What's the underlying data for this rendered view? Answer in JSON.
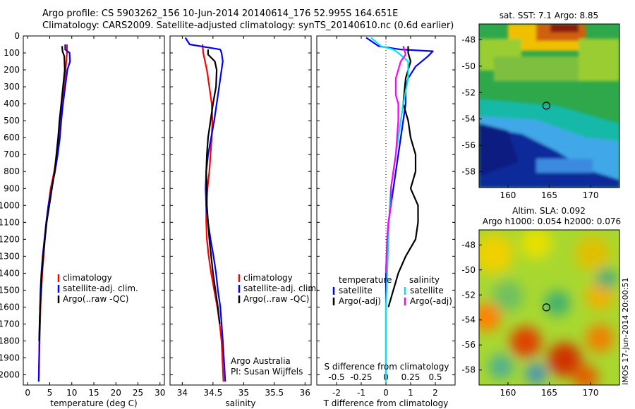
{
  "header": {
    "title_line1": "Argo profile: CS 5903262_156 10-Jun-2014 20140614_176 52.995S 164.651E",
    "title_line2": "Climatology: CARS2009. Satellite-adjusted climatology: synTS_20140610.nc (0.6d earlier)"
  },
  "side_stamp": "IMOS 17-Jun-2014 20:00:51",
  "chart_data": [
    {
      "type": "line",
      "id": "temperature",
      "xlabel": "temperature (deg C)",
      "xlim": [
        -1,
        31
      ],
      "ylim": [
        2060,
        0
      ],
      "xticks": [
        0,
        5,
        10,
        15,
        20,
        25,
        30
      ],
      "yticks": [
        0,
        100,
        200,
        300,
        400,
        500,
        600,
        700,
        800,
        900,
        1000,
        1100,
        1200,
        1300,
        1400,
        1500,
        1600,
        1700,
        1800,
        1900,
        2000
      ],
      "legend": [
        "climatology",
        "satellite-adj. clim.",
        "Argo(..raw -QC)"
      ],
      "legend_colors": [
        "#ff0000",
        "#0000ff",
        "#000000"
      ],
      "series": [
        {
          "name": "climatology",
          "color": "#ff0000",
          "x": [
            8.9,
            8.9,
            8.6,
            8.2,
            7.8,
            7.4,
            7.0,
            6.6,
            6.0,
            5.2,
            4.7,
            4.3,
            3.9,
            3.6,
            3.3,
            3.1,
            2.9,
            2.8,
            2.7,
            2.6,
            2.5
          ],
          "y": [
            50,
            100,
            200,
            300,
            400,
            500,
            600,
            700,
            800,
            900,
            1000,
            1100,
            1200,
            1300,
            1400,
            1500,
            1600,
            1700,
            1800,
            1900,
            2040
          ]
        },
        {
          "name": "satellite-adj. clim.",
          "color": "#0000ff",
          "x": [
            8.5,
            8.5,
            9.5,
            9.6,
            9.0,
            8.5,
            8.0,
            7.6,
            7.3,
            6.8,
            6.2,
            5.4,
            4.7,
            4.2,
            3.8,
            3.4,
            3.1,
            2.9,
            2.8,
            2.7,
            2.6,
            2.5
          ],
          "y": [
            50,
            80,
            100,
            150,
            200,
            300,
            400,
            500,
            600,
            700,
            800,
            900,
            1000,
            1100,
            1200,
            1300,
            1400,
            1500,
            1600,
            1700,
            1900,
            2040
          ]
        },
        {
          "name": "Argo(..raw -QC)",
          "color": "#000000",
          "x": [
            7.8,
            7.9,
            8.3,
            8.4,
            8.0,
            7.6,
            7.2,
            6.9,
            6.5,
            6.1,
            5.5,
            4.9,
            4.3,
            3.9,
            3.5,
            3.2,
            3.0,
            2.8,
            2.7,
            2.6
          ],
          "y": [
            60,
            90,
            120,
            200,
            300,
            400,
            500,
            600,
            700,
            800,
            900,
            1000,
            1100,
            1200,
            1300,
            1400,
            1500,
            1600,
            1700,
            1800
          ]
        }
      ]
    },
    {
      "type": "line",
      "id": "salinity",
      "xlabel": "salinity",
      "xlim": [
        33.8,
        36.1
      ],
      "ylim": [
        2060,
        0
      ],
      "xticks": [
        34,
        34.5,
        35,
        35.5,
        36
      ],
      "legend": [
        "climatology",
        "satellite-adj. clim.",
        "Argo(..raw -QC)"
      ],
      "legend_colors": [
        "#ff0000",
        "#0000ff",
        "#000000"
      ],
      "annotation": [
        "Argo Australia",
        "PI: Susan Wijffels"
      ],
      "series": [
        {
          "name": "climatology",
          "color": "#ff0000",
          "x": [
            34.33,
            34.34,
            34.4,
            34.44,
            34.48,
            34.49,
            34.48,
            34.46,
            34.44,
            34.41,
            34.39,
            34.39,
            34.4,
            34.43,
            34.47,
            34.52,
            34.57,
            34.61,
            34.64,
            34.67
          ],
          "y": [
            50,
            100,
            200,
            300,
            400,
            500,
            600,
            700,
            800,
            900,
            1000,
            1100,
            1200,
            1300,
            1400,
            1500,
            1600,
            1700,
            1800,
            2040
          ]
        },
        {
          "name": "satellite-adj. clim.",
          "color": "#0000ff",
          "x": [
            34.05,
            34.12,
            34.62,
            34.64,
            34.66,
            34.64,
            34.6,
            34.56,
            34.52,
            34.47,
            34.42,
            34.39,
            34.38,
            34.39,
            34.42,
            34.46,
            34.51,
            34.55,
            34.58,
            34.62,
            34.66,
            34.7
          ],
          "y": [
            10,
            50,
            80,
            100,
            150,
            200,
            300,
            400,
            500,
            600,
            700,
            800,
            900,
            1000,
            1100,
            1200,
            1300,
            1400,
            1500,
            1600,
            1800,
            2040
          ]
        },
        {
          "name": "Argo(..raw -QC)",
          "color": "#000000",
          "x": [
            34.42,
            34.42,
            34.53,
            34.56,
            34.55,
            34.5,
            34.46,
            34.42,
            34.4,
            34.39,
            34.4,
            34.4,
            34.42,
            34.44,
            34.47,
            34.5,
            34.54,
            34.58,
            34.61
          ],
          "y": [
            80,
            110,
            150,
            200,
            300,
            400,
            500,
            600,
            700,
            800,
            900,
            1000,
            1100,
            1200,
            1300,
            1400,
            1500,
            1600,
            1700
          ]
        }
      ]
    },
    {
      "type": "line",
      "id": "difference",
      "xlabel": "T difference from climatology",
      "xlabel_top": "S difference from climatology",
      "xlim": [
        -2.8,
        2.8
      ],
      "ylim": [
        2060,
        0
      ],
      "xticks": [
        -2,
        -1,
        0,
        1,
        2
      ],
      "xticks_top_labels": [
        "-0.5",
        "-0.25",
        "0",
        "0.25",
        "0.5"
      ],
      "legend_left_title": "temperature",
      "legend_right_title": "salinity",
      "legend_left": [
        "satellite",
        "Argo(-adj)"
      ],
      "legend_left_colors": [
        "#0000ff",
        "#000000"
      ],
      "legend_right": [
        "satellite",
        "Argo(-adj)"
      ],
      "legend_right_colors": [
        "#00e5ee",
        "#ff00ff"
      ],
      "series": [
        {
          "name": "T satellite",
          "color": "#0000ff",
          "x": [
            -0.8,
            -0.3,
            0.6,
            1.9,
            1.7,
            1.2,
            0.9,
            0.8,
            0.8,
            0.7,
            0.6,
            0.5,
            0.4,
            0.3,
            0.2,
            0.1,
            0.05,
            0.0,
            0.0
          ],
          "y": [
            10,
            60,
            80,
            90,
            120,
            180,
            250,
            300,
            400,
            500,
            600,
            700,
            800,
            900,
            1000,
            1100,
            1200,
            1400,
            2040
          ]
        },
        {
          "name": "T Argo(-adj)",
          "color": "#000000",
          "x": [
            0.9,
            0.9,
            1.0,
            0.8,
            0.7,
            0.9,
            1.0,
            1.2,
            1.2,
            1.0,
            1.3,
            1.3,
            1.2,
            0.8,
            0.5,
            0.3,
            0.1
          ],
          "y": [
            60,
            100,
            150,
            250,
            400,
            500,
            600,
            700,
            800,
            900,
            1000,
            1100,
            1200,
            1300,
            1400,
            1500,
            1600
          ]
        },
        {
          "name": "S satellite",
          "color": "#00e5ee",
          "x": [
            -0.6,
            -0.2,
            0.3,
            0.5,
            0.9,
            0.9,
            0.7,
            0.6,
            0.5,
            0.4,
            0.3,
            0.2,
            0.15,
            0.1,
            0.05,
            0.0,
            0.0
          ],
          "y": [
            10,
            60,
            80,
            100,
            150,
            250,
            400,
            500,
            600,
            700,
            800,
            900,
            1000,
            1200,
            1400,
            1600,
            2040
          ]
        },
        {
          "name": "S Argo(-adj)",
          "color": "#ff00ff",
          "x": [
            0.7,
            0.8,
            0.6,
            0.4,
            0.4,
            0.5,
            0.5,
            0.4,
            0.3,
            0.2,
            0.2,
            0.1,
            0.05,
            0.0
          ],
          "y": [
            60,
            110,
            150,
            250,
            350,
            400,
            500,
            700,
            800,
            900,
            1000,
            1100,
            1200,
            1400
          ]
        }
      ]
    },
    {
      "type": "heatmap",
      "id": "sst_map",
      "title": "sat. SST: 7.1 Argo: 8.85",
      "xticks": [
        160,
        165,
        170
      ],
      "yticks": [
        -48,
        -50,
        -52,
        -54,
        -56,
        -58
      ],
      "xlim": [
        156.5,
        173.5
      ],
      "ylim": [
        -59.2,
        -46.8
      ],
      "marker": {
        "lon": 164.651,
        "lat": -52.995
      }
    },
    {
      "type": "heatmap",
      "id": "sla_map",
      "title_line1": "Altim. SLA: 0.092",
      "title_line2": "Argo h1000: 0.054 h2000: 0.076",
      "xticks": [
        160,
        165,
        170
      ],
      "yticks": [
        -48,
        -50,
        -52,
        -54,
        -56,
        -58
      ],
      "xlim": [
        156.5,
        173.5
      ],
      "ylim": [
        -59.2,
        -46.8
      ],
      "marker": {
        "lon": 164.651,
        "lat": -52.995
      }
    }
  ]
}
